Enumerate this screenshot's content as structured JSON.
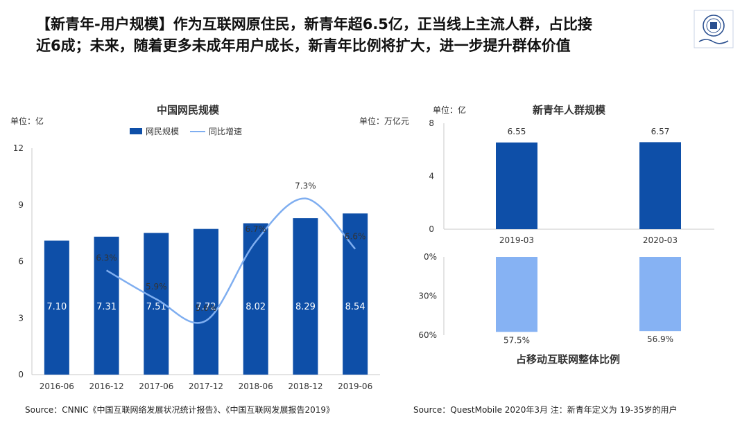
{
  "header": {
    "title": "【新青年-用户规模】作为互联网原住民，新青年超6.5亿，正当线上主流人群，占比接近6成；未来，随着更多未成年用户成长，新青年比例将扩大，进一步提升群体价值"
  },
  "left_chart": {
    "unit_left": "单位：亿",
    "unit_right": "单位：万亿元",
    "legend_bar": "网民规模",
    "legend_line": "同比增速"
  },
  "right_chart": {
    "unit": "单位：亿"
  },
  "footer": {
    "source_left": "Source：CNNIC《中国互联网络发展状况统计报告》、《中国互联网发展报告2019》",
    "source_right": "Source：QuestMobile 2020年3月    注：新青年定义为 19-35岁的用户"
  },
  "colors": {
    "bar_dark": "#0e4fa8",
    "bar_light": "#86b2f3",
    "line": "#7faef0",
    "axis": "#c8c8c8"
  },
  "chart_data": [
    {
      "type": "bar",
      "title": "中国网民规模",
      "categories": [
        "2016-06",
        "2016-12",
        "2017-06",
        "2017-12",
        "2018-06",
        "2018-12",
        "2019-06"
      ],
      "series": [
        {
          "name": "网民规模",
          "type": "bar",
          "values": [
            7.1,
            7.31,
            7.51,
            7.72,
            8.02,
            8.29,
            8.54
          ],
          "value_labels": [
            "7.10",
            "7.31",
            "7.51",
            "7.72",
            "8.02",
            "8.29",
            "8.54"
          ]
        },
        {
          "name": "同比增速",
          "type": "line",
          "values": [
            null,
            6.3,
            5.9,
            5.6,
            6.7,
            7.3,
            6.6
          ],
          "value_labels": [
            null,
            "6.3%",
            "5.9%",
            "5.6%",
            "6.7%",
            "7.3%",
            "6.6%"
          ]
        }
      ],
      "yticks": [
        "0",
        "3",
        "6",
        "9",
        "12"
      ],
      "ylim": [
        0,
        12
      ],
      "y2lim": [
        4.85,
        8.0
      ],
      "legend": "top-center"
    },
    {
      "type": "bar",
      "title": "新青年人群规模",
      "categories": [
        "2019-03",
        "2020-03"
      ],
      "values": [
        6.55,
        6.57
      ],
      "value_labels": [
        "6.55",
        "6.57"
      ],
      "yticks": [
        "0",
        "4",
        "8"
      ],
      "ylim": [
        0,
        8
      ]
    },
    {
      "type": "bar",
      "title": "占移动互联网整体比例",
      "categories": [
        "2019-03",
        "2020-03"
      ],
      "values": [
        57.5,
        56.9
      ],
      "value_labels": [
        "57.5%",
        "56.9%"
      ],
      "yticks": [
        "0%",
        "30%",
        "60%"
      ],
      "ylim": [
        0,
        60
      ],
      "inverted": true
    }
  ]
}
